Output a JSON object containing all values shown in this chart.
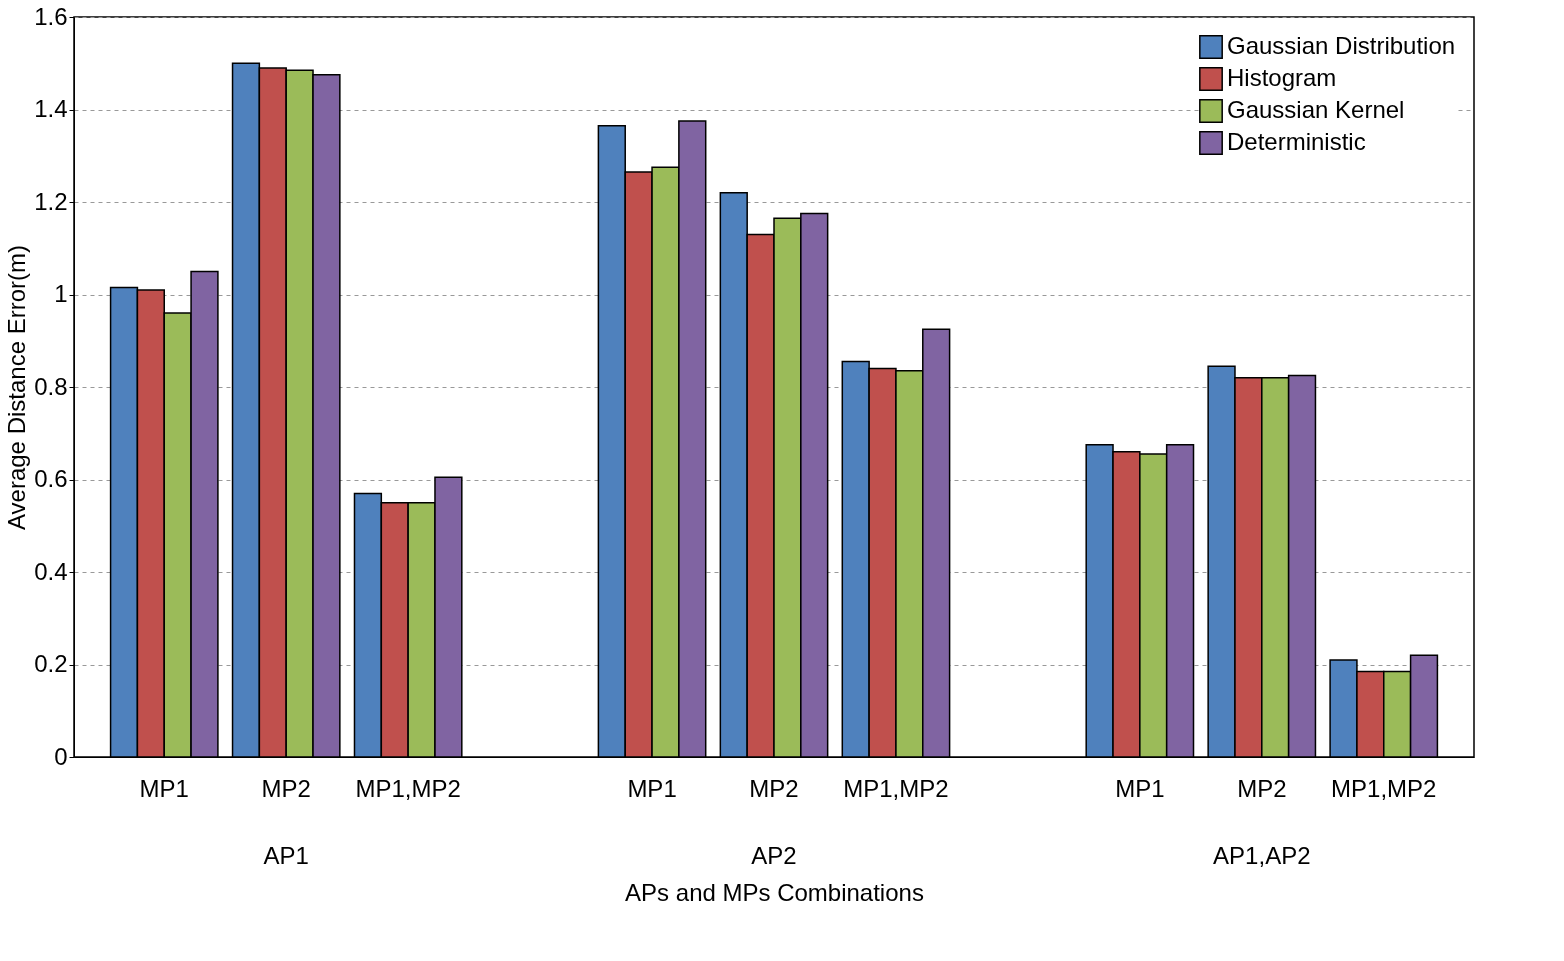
{
  "chart_data": {
    "type": "bar",
    "xlabel": "APs and MPs Combinations",
    "ylabel": "Average Distance Error(m)",
    "categories": [
      "MP1",
      "MP2",
      "MP1,MP2",
      null,
      "MP1",
      "MP2",
      "MP1,MP2",
      null,
      "MP1",
      "MP2",
      "MP1,MP2"
    ],
    "series": [
      {
        "name": "Gaussian Distribution",
        "color": "#4f81bd",
        "values": [
          1.015,
          1.5,
          0.57,
          null,
          1.365,
          1.22,
          0.855,
          null,
          0.675,
          0.845,
          0.21
        ]
      },
      {
        "name": "Histogram",
        "color": "#c0504d",
        "values": [
          1.01,
          1.49,
          0.55,
          null,
          1.265,
          1.13,
          0.84,
          null,
          0.66,
          0.82,
          0.185
        ]
      },
      {
        "name": "Gaussian Kernel",
        "color": "#9bbb59",
        "values": [
          0.96,
          1.485,
          0.55,
          null,
          1.275,
          1.165,
          0.835,
          null,
          0.655,
          0.82,
          0.185
        ]
      },
      {
        "name": "Deterministic",
        "color": "#8064a2",
        "values": [
          1.05,
          1.475,
          0.605,
          null,
          1.375,
          1.175,
          0.925,
          null,
          0.675,
          0.825,
          0.22
        ]
      }
    ],
    "annotations": [
      "AP1",
      "AP2",
      "AP1,AP2"
    ],
    "ylim": [
      0,
      1.6
    ],
    "yticks": [
      0,
      {
        "value": 0.2,
        "label": "0.2"
      },
      {
        "value": 0.4,
        "label": "0.4"
      },
      {
        "value": 0.6,
        "label": "0.6"
      },
      {
        "value": 0.8,
        "label": "0.8"
      },
      1,
      {
        "value": 1.2,
        "label": "1.2"
      },
      {
        "value": 1.4,
        "label": "1.4"
      },
      {
        "value": 1.6,
        "label": "1.6"
      }
    ],
    "grid": "y",
    "legend": "top right"
  }
}
